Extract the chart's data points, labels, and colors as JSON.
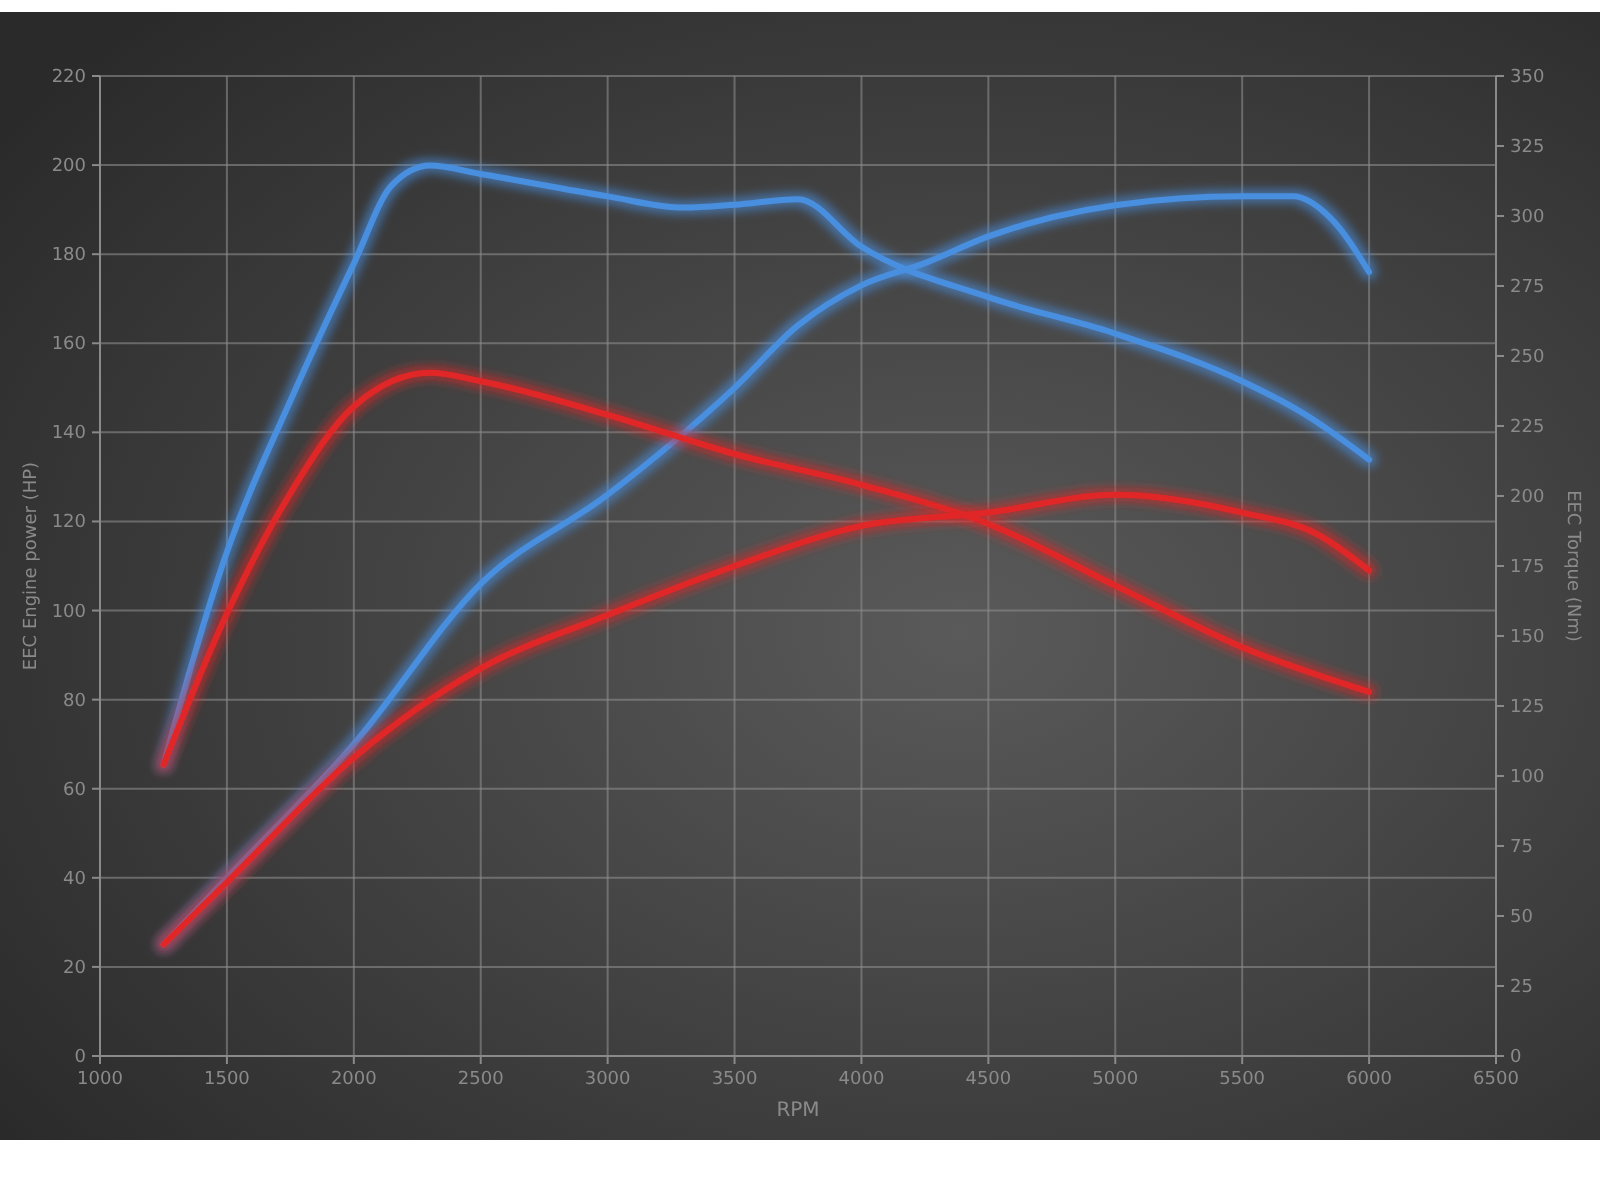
{
  "chart_data": {
    "type": "line",
    "xlabel": "RPM",
    "ylabel": "EEC Engine power (HP)",
    "y2label": "EEC Torque (Nm)",
    "xlim": [
      1000,
      6500
    ],
    "xticks": [
      1000,
      1500,
      2000,
      2500,
      3000,
      3500,
      4000,
      4500,
      5000,
      5500,
      6000,
      6500
    ],
    "ylim": [
      0,
      220
    ],
    "yticks": [
      0,
      20,
      40,
      60,
      80,
      100,
      120,
      140,
      160,
      180,
      200,
      220
    ],
    "y2lim": [
      0,
      350
    ],
    "y2ticks": [
      0,
      25,
      50,
      75,
      100,
      125,
      150,
      175,
      200,
      225,
      250,
      275,
      300,
      325,
      350
    ],
    "grid": true,
    "marker": "none",
    "line_style": "solid",
    "series": [
      {
        "color": "#4a8fe0",
        "axis": "y2",
        "x": [
          1250,
          1500,
          1750,
          2000,
          2150,
          2300,
          2500,
          3000,
          3300,
          3500,
          3750,
          4000,
          4500,
          5000,
          5500,
          5750,
          6000
        ],
        "values": [
          104,
          180,
          234,
          283,
          311,
          318,
          315,
          307,
          303,
          304,
          306,
          289,
          271,
          258,
          241,
          229,
          213
        ]
      },
      {
        "color": "#4a8fe0",
        "x": [
          1250,
          1500,
          2000,
          2500,
          3000,
          3500,
          3750,
          4000,
          4250,
          4500,
          5000,
          5500,
          5700,
          5850,
          6000
        ],
        "values": [
          25,
          40,
          70,
          106,
          126,
          150,
          164,
          173,
          178,
          184,
          191,
          193,
          193,
          188,
          176
        ]
      },
      {
        "color": "#e02828",
        "axis": "y2",
        "x": [
          1250,
          1500,
          1750,
          2000,
          2300,
          2500,
          3000,
          3500,
          4000,
          4500,
          5000,
          5500,
          6000
        ],
        "values": [
          104,
          158,
          201,
          232,
          244,
          241,
          229,
          215,
          204,
          190,
          168,
          146,
          130
        ]
      },
      {
        "color": "#e02828",
        "x": [
          1250,
          1500,
          2000,
          2500,
          3000,
          3500,
          4000,
          4500,
          5000,
          5500,
          5800,
          6000
        ],
        "values": [
          25,
          39,
          67,
          87,
          99,
          110,
          119,
          122,
          126,
          122,
          117,
          109
        ]
      }
    ]
  }
}
